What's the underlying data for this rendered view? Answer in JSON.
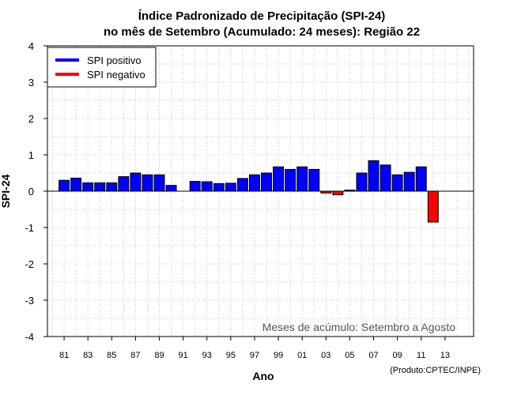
{
  "chart_data": {
    "type": "bar",
    "title_line1": "Índice Padronizado de Precipitação (SPI-24)",
    "title_line2": "no mês de Setembro (Acumulado: 24 meses): Região 22",
    "xlabel": "Ano",
    "ylabel": "SPI-24",
    "ylim": [
      -4,
      4
    ],
    "yticks": [
      -4,
      -3,
      -2,
      -1,
      0,
      1,
      2,
      3,
      4
    ],
    "xlim": [
      1979.6,
      2015.4
    ],
    "xticks": [
      {
        "year": 1981,
        "label": "81"
      },
      {
        "year": 1983,
        "label": "83"
      },
      {
        "year": 1985,
        "label": "85"
      },
      {
        "year": 1987,
        "label": "87"
      },
      {
        "year": 1989,
        "label": "89"
      },
      {
        "year": 1991,
        "label": "91"
      },
      {
        "year": 1993,
        "label": "93"
      },
      {
        "year": 1995,
        "label": "95"
      },
      {
        "year": 1997,
        "label": "97"
      },
      {
        "year": 1999,
        "label": "99"
      },
      {
        "year": 2001,
        "label": "01"
      },
      {
        "year": 2003,
        "label": "03"
      },
      {
        "year": 2005,
        "label": "05"
      },
      {
        "year": 2007,
        "label": "07"
      },
      {
        "year": 2009,
        "label": "09"
      },
      {
        "year": 2011,
        "label": "11"
      },
      {
        "year": 2013,
        "label": "13"
      }
    ],
    "grid": true,
    "years": [
      1981,
      1982,
      1983,
      1984,
      1985,
      1986,
      1987,
      1988,
      1989,
      1990,
      1991,
      1992,
      1993,
      1994,
      1995,
      1996,
      1997,
      1998,
      1999,
      2000,
      2001,
      2002,
      2003,
      2004,
      2005,
      2006,
      2007,
      2008,
      2009,
      2010,
      2011,
      2012
    ],
    "values": [
      0.3,
      0.36,
      0.23,
      0.23,
      0.23,
      0.4,
      0.5,
      0.45,
      0.45,
      0.16,
      0.0,
      0.27,
      0.26,
      0.21,
      0.22,
      0.35,
      0.45,
      0.5,
      0.67,
      0.6,
      0.67,
      0.6,
      -0.05,
      -0.1,
      0.03,
      0.5,
      0.84,
      0.72,
      0.45,
      0.52,
      0.67,
      -0.85
    ],
    "positive_color": "#0000ff",
    "negative_color": "#ff0000",
    "legend": [
      {
        "label": "SPI positivo",
        "color": "#0000ff"
      },
      {
        "label": "SPI negativo",
        "color": "#ff0000"
      }
    ],
    "legend_position": "top-left",
    "annotation": "Meses de acúmulo: Setembro a Agosto",
    "credit": "(Produto:CPTEC/INPE)"
  }
}
